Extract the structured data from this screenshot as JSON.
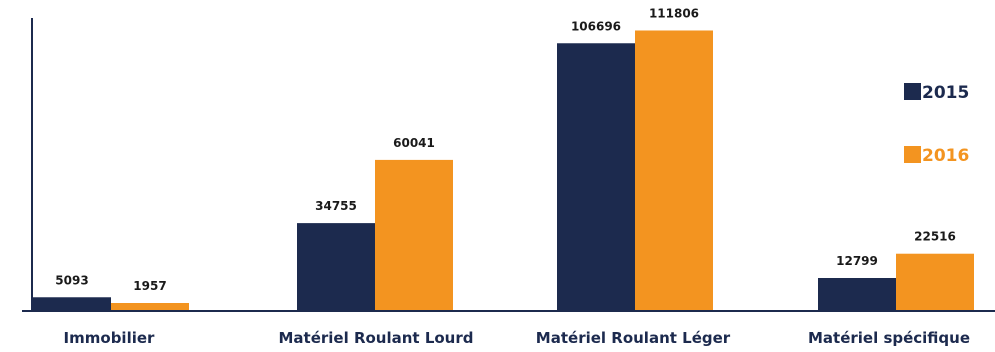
{
  "chart_data": {
    "type": "bar",
    "categories": [
      "Immobilier",
      "Matériel Roulant Lourd",
      "Matériel Roulant Léger",
      "Matériel spécifique"
    ],
    "series": [
      {
        "name": "2015",
        "color": "#1c2a4e",
        "values": [
          5093,
          34755,
          106696,
          12799
        ]
      },
      {
        "name": "2016",
        "color": "#f39420",
        "values": [
          1957,
          60041,
          111806,
          22516
        ]
      }
    ],
    "ylim": [
      0,
      120000
    ],
    "grid": false,
    "legend_position": "right",
    "axis_color": "#1c2a4e"
  }
}
